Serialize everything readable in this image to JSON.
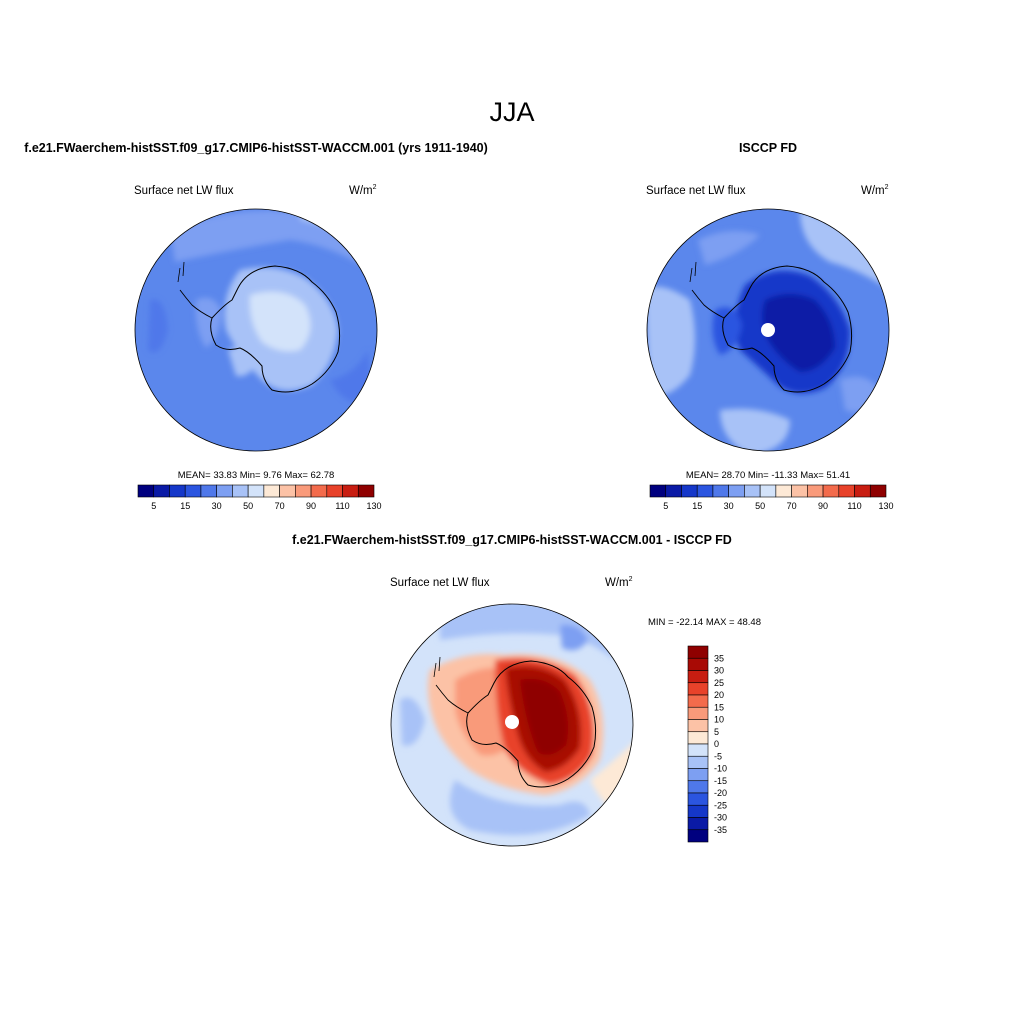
{
  "figure": {
    "title": "JJA",
    "mid_title": "f.e21.FWaerchem-histSST.f09_g17.CMIP6-histSST-WACCM.001 - ISCCP FD"
  },
  "panels": [
    {
      "title": "f.e21.FWaerchem-histSST.f09_g17.CMIP6-histSST-WACCM.001 (yrs 1911-1940)",
      "left_label": "Surface net LW flux",
      "units": "W/m",
      "units_sup": "2",
      "stats": "MEAN=  33.83  Min=   9.76  Max=  62.78",
      "pole_hole": false,
      "colorbar": {
        "orientation": "horizontal",
        "ticks": [
          "5",
          "15",
          "30",
          "50",
          "70",
          "90",
          "110",
          "130"
        ]
      }
    },
    {
      "title": "ISCCP FD",
      "left_label": "Surface net LW flux",
      "units": "W/m",
      "units_sup": "2",
      "stats": "MEAN=  28.70  Min= -11.33  Max=  51.41",
      "pole_hole": true,
      "colorbar": {
        "orientation": "horizontal",
        "ticks": [
          "5",
          "15",
          "30",
          "50",
          "70",
          "90",
          "110",
          "130"
        ]
      }
    },
    {
      "title": "",
      "left_label": "Surface net LW flux",
      "units": "W/m",
      "units_sup": "2",
      "stats": "MIN = -22.14 MAX =  48.48",
      "pole_hole": true,
      "colorbar": {
        "orientation": "vertical",
        "ticks": [
          "35",
          "30",
          "25",
          "20",
          "15",
          "10",
          "5",
          "0",
          "-5",
          "-10",
          "-15",
          "-20",
          "-25",
          "-30",
          "-35"
        ]
      }
    }
  ],
  "palettes": {
    "abs": [
      "#00007f",
      "#0a1aa6",
      "#1537c9",
      "#2b55e0",
      "#4f78ea",
      "#7d9ff2",
      "#a8c2f7",
      "#d3e3fa",
      "#fde9d6",
      "#fcc2a6",
      "#f99a7a",
      "#f36b4c",
      "#e8422a",
      "#c81d11",
      "#8f0000"
    ],
    "diff": [
      "#00007f",
      "#0a1aa6",
      "#1537c9",
      "#2b55e0",
      "#4f78ea",
      "#7d9ff2",
      "#a8c2f7",
      "#d3e3fa",
      "#fde9d6",
      "#fcc2a6",
      "#f99a7a",
      "#f36b4c",
      "#e8422a",
      "#c81d11",
      "#a80a05",
      "#8f0000"
    ]
  }
}
